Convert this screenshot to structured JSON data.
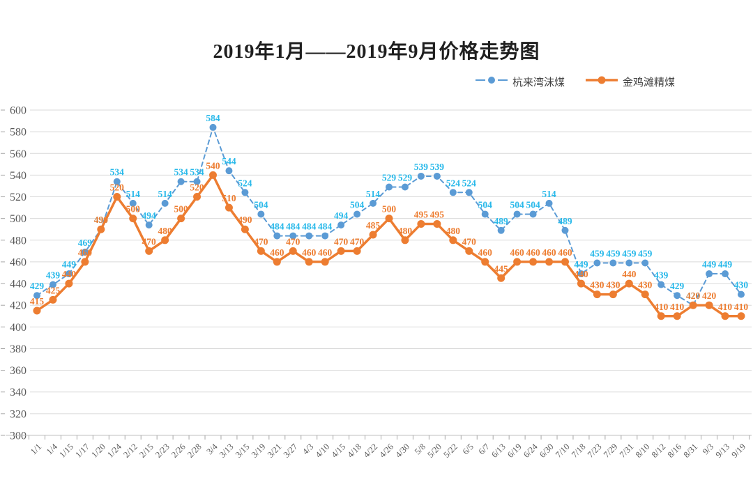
{
  "chart_data": {
    "type": "line",
    "title": "2019年1月——2019年9月价格走势图",
    "xlabel": "",
    "ylabel": "",
    "ylim": [
      300,
      600
    ],
    "ytick_step": 20,
    "y_ticks": [
      300,
      320,
      340,
      360,
      380,
      400,
      420,
      440,
      460,
      480,
      500,
      520,
      540,
      560,
      580,
      600
    ],
    "grid": true,
    "data_labels": true,
    "legend_position": "top-right",
    "categories": [
      "1/1",
      "1/4",
      "1/15",
      "1/17",
      "1/20",
      "1/24",
      "2/12",
      "2/15",
      "2/23",
      "2/26",
      "2/28",
      "3/4",
      "3/13",
      "3/15",
      "3/19",
      "3/21",
      "3/27",
      "4/3",
      "4/10",
      "4/15",
      "4/18",
      "4/22",
      "4/26",
      "4/30",
      "5/8",
      "5/20",
      "5/22",
      "6/5",
      "6/7",
      "6/13",
      "6/19",
      "6/24",
      "6/30",
      "7/10",
      "7/18",
      "7/23",
      "7/29",
      "7/31",
      "8/10",
      "8/12",
      "8/16",
      "8/31",
      "9/3",
      "9/13",
      "9/19"
    ],
    "series": [
      {
        "name": "杭来湾沫煤",
        "line_style": "dashed",
        "color": "#5B9BD5",
        "label_color": "#29B9EA",
        "values": [
          429,
          439,
          449,
          469,
          490,
          534,
          514,
          494,
          514,
          534,
          534,
          584,
          544,
          524,
          504,
          484,
          484,
          484,
          484,
          494,
          504,
          514,
          529,
          529,
          539,
          539,
          524,
          524,
          504,
          489,
          504,
          504,
          514,
          489,
          449,
          459,
          459,
          459,
          459,
          439,
          429,
          420,
          449,
          449,
          430
        ]
      },
      {
        "name": "金鸡滩精煤",
        "line_style": "solid",
        "color": "#ED7D31",
        "label_color": "#ED7D31",
        "values": [
          415,
          425,
          440,
          460,
          490,
          520,
          500,
          470,
          480,
          500,
          520,
          540,
          510,
          490,
          470,
          460,
          470,
          460,
          460,
          470,
          470,
          485,
          500,
          480,
          495,
          495,
          480,
          470,
          460,
          445,
          460,
          460,
          460,
          460,
          440,
          430,
          430,
          440,
          430,
          410,
          410,
          420,
          420,
          410,
          410
        ]
      }
    ],
    "colors": {
      "grid": "#D9D9D9",
      "axis": "#BFBFBF",
      "tick": "#A6A6A6",
      "axis_label": "#595959",
      "title": "#1F1F1F",
      "legend_text": "#404040",
      "background": "#FFFFFF"
    }
  }
}
